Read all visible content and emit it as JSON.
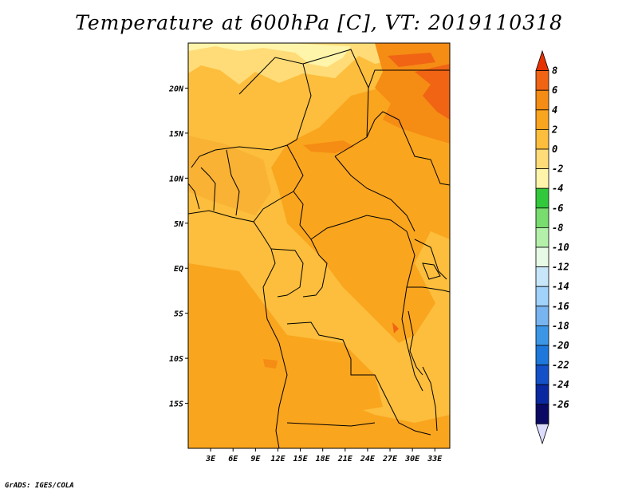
{
  "title": "Temperature at 600hPa [C], VT: 2019110318",
  "credit": "GrADS: IGES/COLA",
  "map": {
    "lon_range": [
      0,
      35
    ],
    "lat_range": [
      -20,
      25
    ],
    "lat_ticks": [
      "20N",
      "15N",
      "10N",
      "5N",
      "EQ",
      "5S",
      "10S",
      "15S"
    ],
    "lat_values": [
      20,
      15,
      10,
      5,
      0,
      -5,
      -10,
      -15
    ],
    "lon_ticks": [
      "3E",
      "6E",
      "9E",
      "12E",
      "15E",
      "18E",
      "21E",
      "24E",
      "27E",
      "30E",
      "33E"
    ],
    "lon_values": [
      3,
      6,
      9,
      12,
      15,
      18,
      21,
      24,
      27,
      30,
      33
    ]
  },
  "colorbar": {
    "labels": [
      "8",
      "6",
      "4",
      "2",
      "0",
      "-2",
      "-4",
      "-6",
      "-8",
      "-10",
      "-12",
      "-14",
      "-16",
      "-18",
      "-20",
      "-22",
      "-24",
      "-26"
    ],
    "colors": [
      "#e63200",
      "#f06414",
      "#f58c14",
      "#faa51e",
      "#fcbe3c",
      "#ffdc78",
      "#fff5aa",
      "#32c83c",
      "#78dc6e",
      "#b4f0aa",
      "#e6fae6",
      "#c8e6fa",
      "#a0d2fa",
      "#78b4f0",
      "#3c96e6",
      "#1e78dc",
      "#1450c8",
      "#0a28a0",
      "#0a0a64",
      "#dcdcff"
    ]
  }
}
